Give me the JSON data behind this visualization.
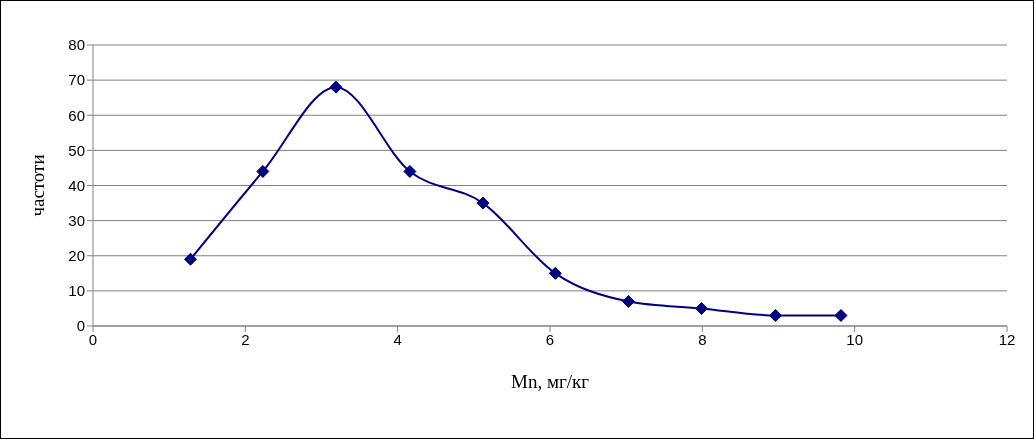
{
  "chart_data": {
    "type": "line",
    "xlabel": "Mn, мг/кг",
    "ylabel": "частоти",
    "x": [
      1.28,
      2.23,
      3.19,
      4.16,
      5.12,
      6.07,
      7.03,
      7.99,
      8.96,
      9.82
    ],
    "series": [
      {
        "color": "#000080",
        "values": [
          19,
          44,
          68,
          44,
          35,
          15,
          7,
          5,
          3,
          3
        ]
      }
    ],
    "xlim": [
      0,
      12
    ],
    "xticks": [
      0,
      2,
      4,
      6,
      8,
      10,
      12
    ],
    "ylim": [
      0,
      80
    ],
    "yticks": [
      0,
      10,
      20,
      30,
      40,
      50,
      60,
      70,
      80
    ],
    "grid": "y",
    "marker": "diamond",
    "line_style": "solid",
    "legend": false
  }
}
